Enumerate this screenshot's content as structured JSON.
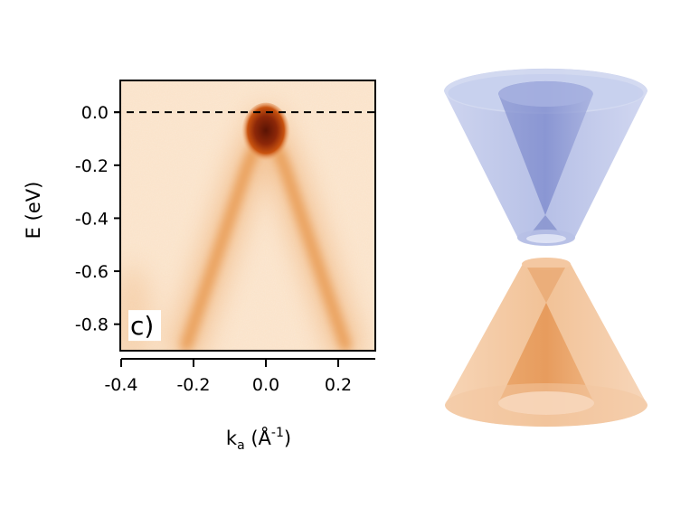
{
  "figure": {
    "panel_label": "c)",
    "colors": {
      "photoemission_low": "#fbe7d2",
      "photoemission_band": "#eaa05c",
      "photoemission_peak": "#6a1a06",
      "upper_cone": "#9aa6d9",
      "lower_cone": "#efb27d"
    }
  },
  "chart_data": {
    "type": "heatmap",
    "xlabel": "k",
    "xlabel_sub": "a",
    "xlabel_unit_open": " (Å",
    "xlabel_unit_sup": "-1",
    "xlabel_unit_close": ")",
    "ylabel": "E (eV)",
    "xlim": [
      -0.4,
      0.3
    ],
    "ylim": [
      -0.9,
      0.12
    ],
    "x_ticks": [
      -0.4,
      -0.2,
      0.0,
      0.2
    ],
    "x_tick_labels": [
      "-0.4",
      "-0.2",
      "0.0",
      "0.2"
    ],
    "y_ticks": [
      0.0,
      -0.2,
      -0.4,
      -0.6,
      -0.8
    ],
    "y_tick_labels": [
      "0.0",
      "-0.2",
      "-0.4",
      "-0.6",
      "-0.8"
    ],
    "fermi_level": 0.0,
    "dirac_point": {
      "k": 0.0,
      "E": -0.08
    },
    "dispersion": {
      "left_branch": [
        [
          0.0,
          -0.05
        ],
        [
          -0.05,
          -0.2
        ],
        [
          -0.1,
          -0.4
        ],
        [
          -0.15,
          -0.6
        ],
        [
          -0.2,
          -0.8
        ],
        [
          -0.22,
          -0.88
        ]
      ],
      "right_branch": [
        [
          0.0,
          -0.05
        ],
        [
          0.05,
          -0.2
        ],
        [
          0.1,
          -0.4
        ],
        [
          0.15,
          -0.6
        ],
        [
          0.2,
          -0.8
        ],
        [
          0.22,
          -0.88
        ]
      ]
    }
  }
}
